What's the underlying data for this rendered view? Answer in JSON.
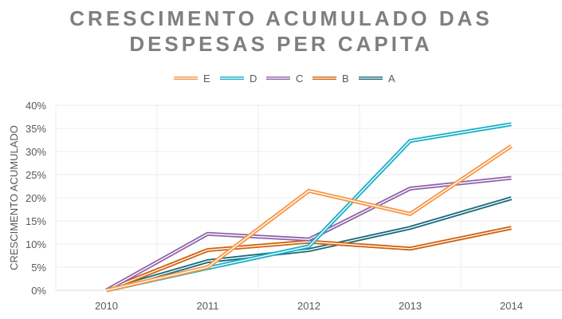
{
  "chart_data": {
    "type": "line",
    "title": [
      "CRESCIMENTO ACUMULADO DAS",
      "DESPESAS PER CAPITA"
    ],
    "xlabel": "",
    "ylabel": "CRESCIMENTO ACUMULADO",
    "categories": [
      "2010",
      "2011",
      "2012",
      "2013",
      "2014"
    ],
    "ylim": [
      0,
      40
    ],
    "yticks": [
      "0%",
      "5%",
      "10%",
      "15%",
      "20%",
      "25%",
      "30%",
      "35%",
      "40%"
    ],
    "grid": true,
    "legend": "top",
    "series": [
      {
        "name": "E",
        "color": "#f79646",
        "values": [
          0,
          5.0,
          21.5,
          16.5,
          31.2
        ]
      },
      {
        "name": "D",
        "color": "#1aafc8",
        "values": [
          0,
          4.8,
          9.5,
          32.3,
          35.9
        ]
      },
      {
        "name": "C",
        "color": "#8e62a8",
        "values": [
          0,
          12.2,
          11.0,
          22.0,
          24.3
        ]
      },
      {
        "name": "B",
        "color": "#d0620e",
        "values": [
          0,
          8.7,
          10.5,
          9.0,
          13.5
        ]
      },
      {
        "name": "A",
        "color": "#17697a",
        "values": [
          0,
          6.3,
          8.7,
          13.5,
          19.9
        ]
      }
    ]
  }
}
